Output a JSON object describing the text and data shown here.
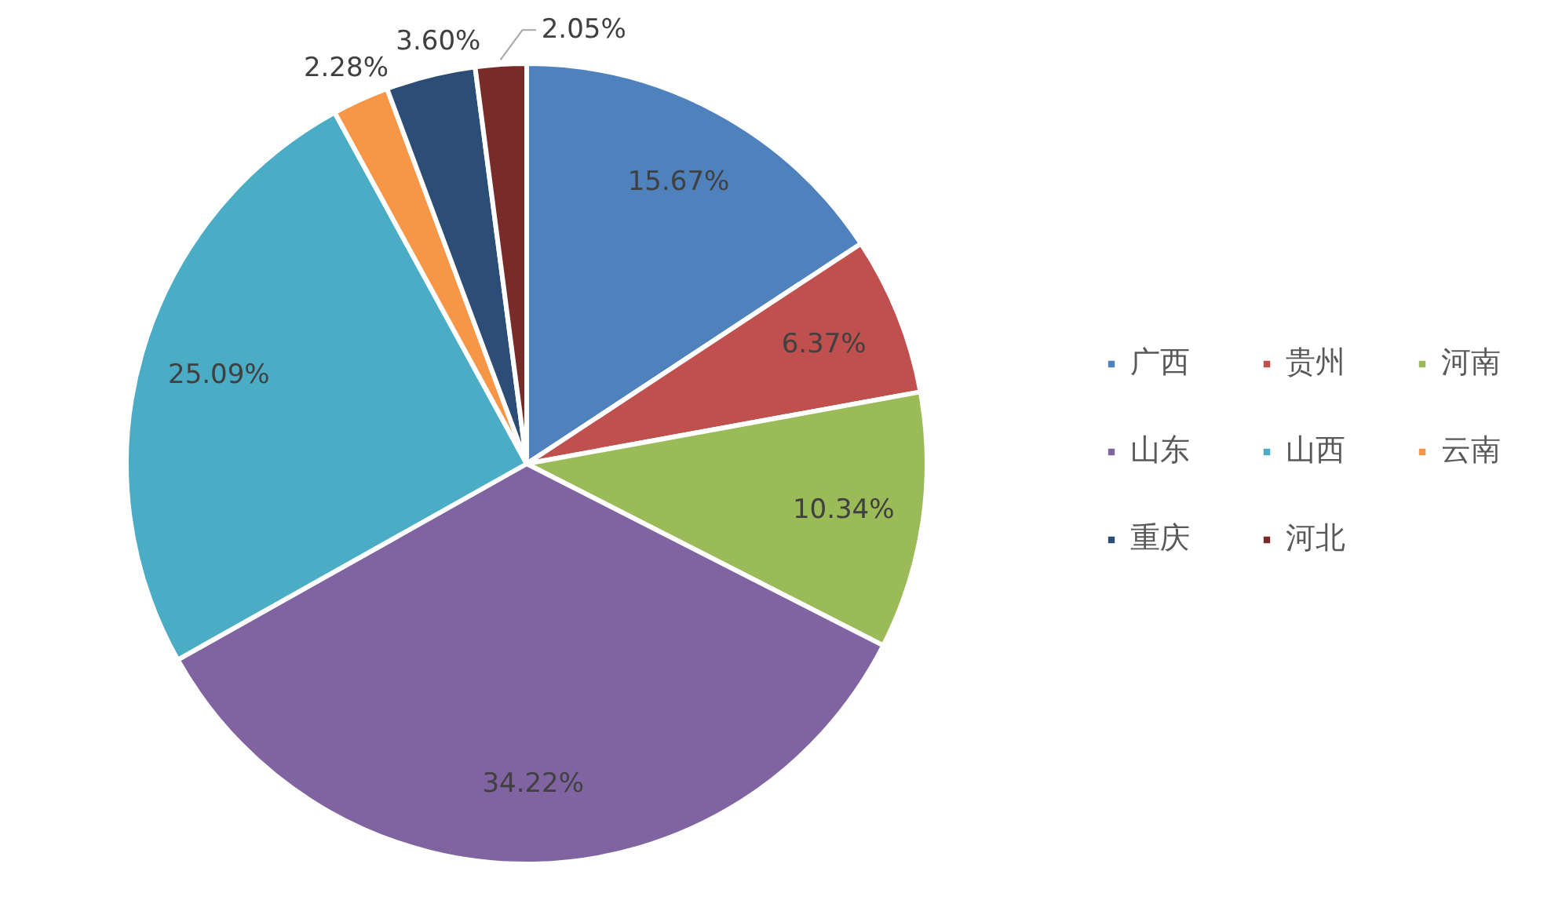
{
  "chart_data": {
    "type": "pie",
    "categories": [
      "广西",
      "贵州",
      "河南",
      "山东",
      "山西",
      "云南",
      "重庆",
      "河北"
    ],
    "values": [
      15.67,
      6.37,
      10.34,
      34.22,
      25.09,
      2.28,
      3.6,
      2.05
    ],
    "colors": [
      "#4f81bd",
      "#c0504d",
      "#9bbb59",
      "#8064a2",
      "#4bacc6",
      "#f79646",
      "#2c4d75",
      "#772c2a"
    ],
    "value_labels": [
      "15.67%",
      "6.37%",
      "10.34%",
      "34.22%",
      "25.09%",
      "2.28%",
      "3.60%",
      "2.05%"
    ],
    "legend": "right"
  }
}
